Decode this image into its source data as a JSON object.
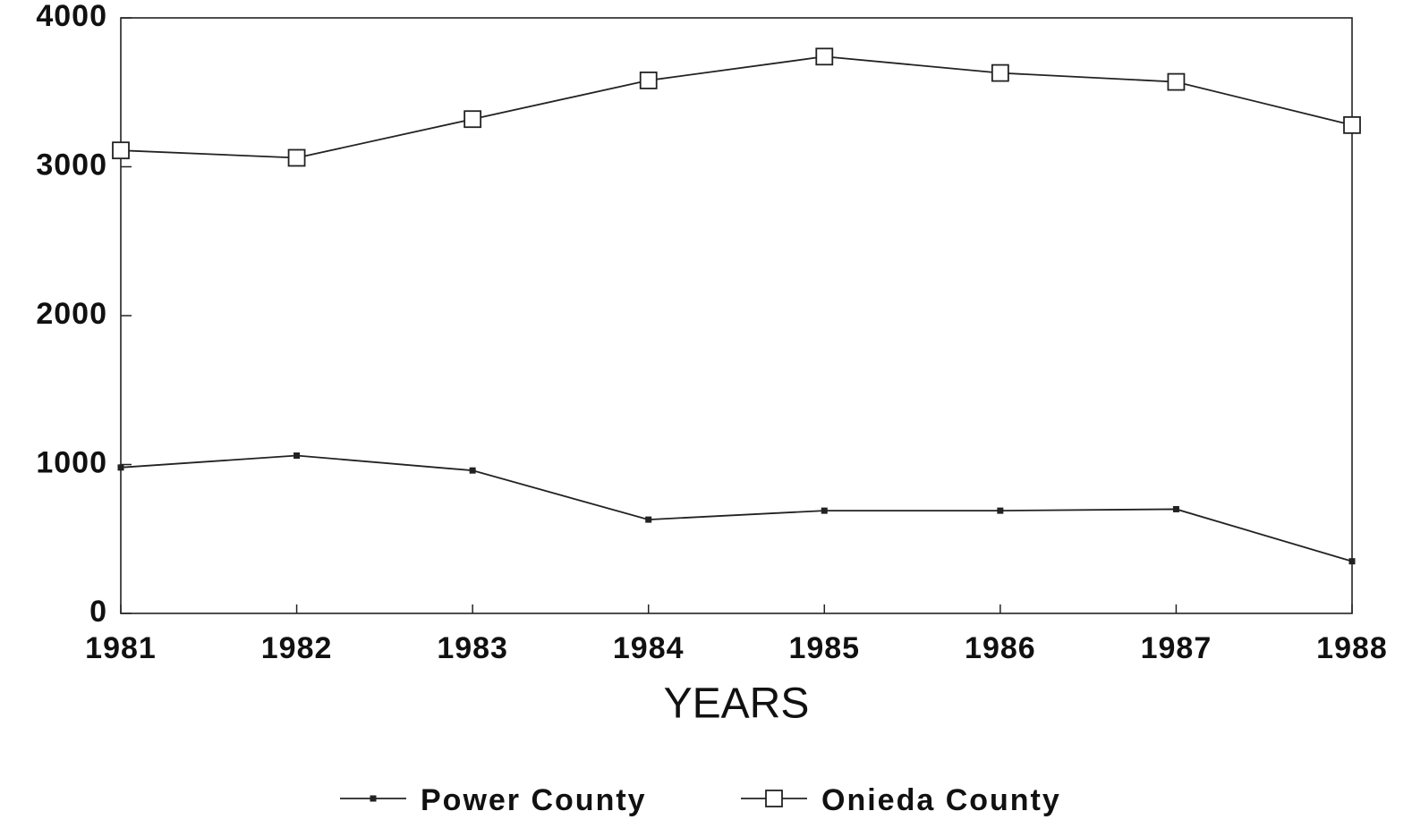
{
  "chart_data": {
    "type": "line",
    "xlabel": "YEARS",
    "x": [
      1981,
      1982,
      1983,
      1984,
      1985,
      1986,
      1987,
      1988
    ],
    "xlim": [
      1981,
      1988
    ],
    "xticks": [
      1981,
      1982,
      1983,
      1984,
      1985,
      1986,
      1987,
      1988
    ],
    "ylim": [
      0,
      4000
    ],
    "yticks": [
      0,
      1000,
      2000,
      3000,
      4000
    ],
    "grid": false,
    "legend": "bottom",
    "series": [
      {
        "name": "Power County",
        "color": "#222222",
        "marker": "filled-square",
        "values": [
          980,
          1060,
          960,
          630,
          690,
          690,
          700,
          350
        ]
      },
      {
        "name": "Onieda County",
        "color": "#222222",
        "marker": "open-square",
        "values": [
          3110,
          3060,
          3320,
          3580,
          3740,
          3630,
          3570,
          3280
        ]
      }
    ]
  }
}
